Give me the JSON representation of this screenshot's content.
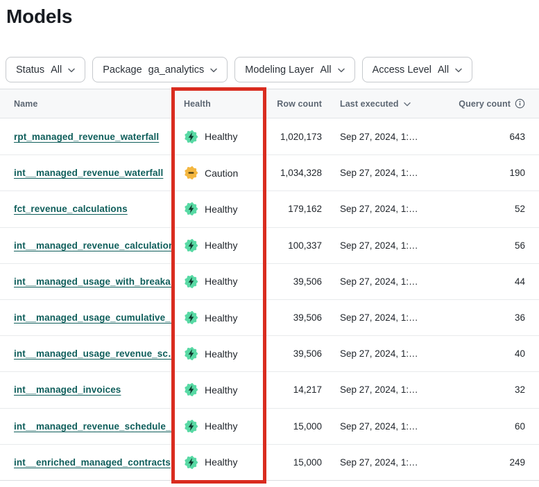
{
  "page": {
    "title": "Models"
  },
  "filters": [
    {
      "label": "Status",
      "value": "All"
    },
    {
      "label": "Package",
      "value": "ga_analytics"
    },
    {
      "label": "Modeling Layer",
      "value": "All"
    },
    {
      "label": "Access Level",
      "value": "All"
    }
  ],
  "table": {
    "columns": [
      {
        "label": "Name"
      },
      {
        "label": "Health"
      },
      {
        "label": "Row count"
      },
      {
        "label": "Last executed",
        "sort": "desc"
      },
      {
        "label": "Query count",
        "info": true
      }
    ],
    "rows": [
      {
        "name": "rpt_managed_revenue_waterfall",
        "health": "Healthy",
        "row_count": "1,020,173",
        "last_executed": "Sep 27, 2024, 1:…",
        "query_count": "643"
      },
      {
        "name": "int__managed_revenue_waterfall",
        "health": "Caution",
        "row_count": "1,034,328",
        "last_executed": "Sep 27, 2024, 1:…",
        "query_count": "190"
      },
      {
        "name": "fct_revenue_calculations",
        "health": "Healthy",
        "row_count": "179,162",
        "last_executed": "Sep 27, 2024, 1:…",
        "query_count": "52"
      },
      {
        "name": "int__managed_revenue_calculations",
        "health": "Healthy",
        "row_count": "100,337",
        "last_executed": "Sep 27, 2024, 1:…",
        "query_count": "56"
      },
      {
        "name": "int__managed_usage_with_breaka…",
        "health": "Healthy",
        "row_count": "39,506",
        "last_executed": "Sep 27, 2024, 1:…",
        "query_count": "44"
      },
      {
        "name": "int__managed_usage_cumulative_…",
        "health": "Healthy",
        "row_count": "39,506",
        "last_executed": "Sep 27, 2024, 1:…",
        "query_count": "36"
      },
      {
        "name": "int__managed_usage_revenue_sc…",
        "health": "Healthy",
        "row_count": "39,506",
        "last_executed": "Sep 27, 2024, 1:…",
        "query_count": "40"
      },
      {
        "name": "int__managed_invoices",
        "health": "Healthy",
        "row_count": "14,217",
        "last_executed": "Sep 27, 2024, 1:…",
        "query_count": "32"
      },
      {
        "name": "int__managed_revenue_schedule_…",
        "health": "Healthy",
        "row_count": "15,000",
        "last_executed": "Sep 27, 2024, 1:…",
        "query_count": "60"
      },
      {
        "name": "int__enriched_managed_contracts",
        "health": "Healthy",
        "row_count": "15,000",
        "last_executed": "Sep 27, 2024, 1:…",
        "query_count": "249"
      }
    ]
  },
  "colors": {
    "link": "#0f5e5b",
    "healthy_badge": "#58d9a4",
    "healthy_glyph": "#11382e",
    "caution_badge": "#f4b740",
    "caution_glyph": "#463a14",
    "annotation": "#d92c1f"
  }
}
